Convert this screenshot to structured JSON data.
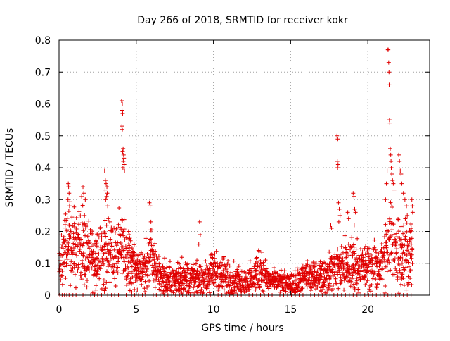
{
  "chart_data": {
    "type": "scatter",
    "title": "Day 266 of 2018, SRMTID for receiver kokr",
    "xlabel": "GPS time / hours",
    "ylabel": "SRMTID / TECUs",
    "xlim": [
      0,
      24
    ],
    "ylim": [
      0,
      0.8
    ],
    "x_ticks": [
      0,
      5,
      10,
      15,
      20
    ],
    "x_tick_labels": [
      "0",
      "5",
      "10",
      "15",
      "20"
    ],
    "y_ticks": [
      0,
      0.1,
      0.2,
      0.3,
      0.4,
      0.5,
      0.6,
      0.7,
      0.8
    ],
    "y_tick_labels": [
      "0",
      "0.1",
      "0.2",
      "0.3",
      "0.4",
      "0.5",
      "0.6",
      "0.7",
      "0.8"
    ],
    "grid": true,
    "marker": "+",
    "series_color": "#e00000",
    "grid_color": "#a0a0a0",
    "series": [
      {
        "name": "SRMTID",
        "envelope_hours": [
          0,
          0.4,
          0.7,
          1.0,
          1.5,
          2.0,
          2.5,
          3.0,
          3.3,
          3.6,
          4.0,
          4.3,
          4.6,
          5.0,
          5.5,
          6.0,
          6.5,
          7.0,
          7.5,
          8.0,
          8.5,
          9.0,
          9.5,
          10.0,
          10.5,
          11.0,
          11.5,
          12.0,
          12.5,
          13.0,
          13.5,
          14.0,
          14.5,
          15.0,
          15.5,
          16.0,
          16.5,
          17.0,
          17.5,
          18.0,
          18.5,
          19.0,
          19.5,
          20.0,
          20.5,
          21.0,
          21.5,
          22.0,
          22.5,
          22.9
        ],
        "envelope_median": [
          0.1,
          0.17,
          0.16,
          0.14,
          0.15,
          0.13,
          0.1,
          0.15,
          0.14,
          0.12,
          0.16,
          0.12,
          0.1,
          0.08,
          0.08,
          0.12,
          0.06,
          0.05,
          0.05,
          0.06,
          0.05,
          0.05,
          0.05,
          0.08,
          0.06,
          0.05,
          0.05,
          0.04,
          0.05,
          0.09,
          0.05,
          0.04,
          0.04,
          0.03,
          0.04,
          0.06,
          0.06,
          0.06,
          0.07,
          0.09,
          0.09,
          0.1,
          0.09,
          0.09,
          0.09,
          0.1,
          0.17,
          0.14,
          0.13,
          0.15
        ],
        "envelope_spread": [
          0.04,
          0.06,
          0.06,
          0.05,
          0.06,
          0.05,
          0.04,
          0.07,
          0.05,
          0.05,
          0.06,
          0.05,
          0.04,
          0.03,
          0.03,
          0.05,
          0.03,
          0.025,
          0.025,
          0.03,
          0.025,
          0.025,
          0.025,
          0.03,
          0.03,
          0.025,
          0.025,
          0.02,
          0.025,
          0.04,
          0.02,
          0.015,
          0.015,
          0.015,
          0.02,
          0.025,
          0.025,
          0.025,
          0.03,
          0.04,
          0.04,
          0.04,
          0.035,
          0.035,
          0.035,
          0.04,
          0.08,
          0.06,
          0.05,
          0.05
        ],
        "peak_points": [
          [
            0.6,
            0.35
          ],
          [
            0.62,
            0.34
          ],
          [
            0.65,
            0.32
          ],
          [
            0.58,
            0.3
          ],
          [
            0.68,
            0.28
          ],
          [
            1.55,
            0.34
          ],
          [
            1.6,
            0.32
          ],
          [
            1.7,
            0.3
          ],
          [
            1.65,
            0.25
          ],
          [
            1.5,
            0.22
          ],
          [
            2.95,
            0.39
          ],
          [
            3.0,
            0.36
          ],
          [
            3.05,
            0.35
          ],
          [
            3.1,
            0.34
          ],
          [
            2.98,
            0.33
          ],
          [
            3.12,
            0.32
          ],
          [
            3.08,
            0.31
          ],
          [
            3.02,
            0.3
          ],
          [
            3.15,
            0.28
          ],
          [
            3.2,
            0.24
          ],
          [
            4.05,
            0.61
          ],
          [
            4.1,
            0.6
          ],
          [
            4.08,
            0.58
          ],
          [
            4.12,
            0.57
          ],
          [
            4.07,
            0.53
          ],
          [
            4.1,
            0.52
          ],
          [
            4.15,
            0.46
          ],
          [
            4.12,
            0.45
          ],
          [
            4.18,
            0.44
          ],
          [
            4.2,
            0.43
          ],
          [
            4.16,
            0.42
          ],
          [
            4.22,
            0.41
          ],
          [
            4.14,
            0.4
          ],
          [
            4.24,
            0.39
          ],
          [
            4.5,
            0.2
          ],
          [
            4.55,
            0.19
          ],
          [
            5.85,
            0.29
          ],
          [
            5.9,
            0.28
          ],
          [
            5.95,
            0.23
          ],
          [
            9.1,
            0.23
          ],
          [
            9.15,
            0.19
          ],
          [
            9.05,
            0.16
          ],
          [
            17.6,
            0.22
          ],
          [
            17.65,
            0.21
          ],
          [
            18.0,
            0.5
          ],
          [
            18.05,
            0.49
          ],
          [
            18.02,
            0.42
          ],
          [
            18.07,
            0.41
          ],
          [
            18.04,
            0.4
          ],
          [
            18.1,
            0.29
          ],
          [
            18.15,
            0.27
          ],
          [
            18.2,
            0.25
          ],
          [
            18.12,
            0.23
          ],
          [
            18.7,
            0.26
          ],
          [
            18.75,
            0.24
          ],
          [
            19.05,
            0.32
          ],
          [
            19.1,
            0.31
          ],
          [
            19.15,
            0.27
          ],
          [
            19.2,
            0.26
          ],
          [
            19.12,
            0.22
          ],
          [
            21.3,
            0.77
          ],
          [
            21.32,
            0.77
          ],
          [
            21.35,
            0.73
          ],
          [
            21.37,
            0.7
          ],
          [
            21.38,
            0.66
          ],
          [
            21.4,
            0.55
          ],
          [
            21.42,
            0.54
          ],
          [
            21.45,
            0.46
          ],
          [
            21.48,
            0.44
          ],
          [
            21.5,
            0.42
          ],
          [
            21.52,
            0.4
          ],
          [
            21.55,
            0.38
          ],
          [
            21.6,
            0.36
          ],
          [
            21.65,
            0.35
          ],
          [
            21.7,
            0.33
          ],
          [
            21.25,
            0.39
          ],
          [
            21.2,
            0.35
          ],
          [
            21.15,
            0.3
          ],
          [
            22.0,
            0.44
          ],
          [
            22.05,
            0.42
          ],
          [
            22.1,
            0.39
          ],
          [
            22.15,
            0.38
          ],
          [
            22.2,
            0.35
          ],
          [
            22.3,
            0.32
          ],
          [
            22.4,
            0.3
          ],
          [
            22.5,
            0.28
          ],
          [
            22.55,
            0.25
          ],
          [
            22.85,
            0.3
          ],
          [
            22.88,
            0.28
          ],
          [
            22.9,
            0.26
          ],
          [
            22.8,
            0.22
          ],
          [
            22.75,
            0.2
          ]
        ],
        "zero_points_hours": [
          0.05,
          0.2,
          0.35,
          0.5,
          0.65,
          0.9,
          1.1,
          1.3,
          1.55,
          1.75,
          2.05,
          2.3,
          2.5,
          2.75,
          3.15,
          3.4,
          3.6,
          3.85,
          4.35,
          4.7,
          4.9,
          5.15,
          5.4,
          5.6,
          6.1,
          6.3,
          6.55,
          6.8,
          7.05,
          7.3,
          7.55,
          7.8,
          8.0,
          8.25,
          8.5,
          8.75,
          9.0,
          9.3,
          9.55,
          9.8,
          10.05,
          10.3,
          10.55,
          10.8,
          11.05,
          11.3,
          11.55,
          11.8,
          12.05,
          12.3,
          12.55,
          12.8,
          13.05,
          13.3,
          13.55,
          13.8,
          14.05,
          14.3,
          14.55,
          14.8,
          15.05,
          15.3,
          15.55,
          15.8,
          16.05,
          16.3,
          16.55,
          16.8,
          17.05,
          17.3,
          17.55,
          17.8,
          18.05,
          18.3,
          18.55,
          18.8,
          19.05,
          19.3,
          19.55,
          19.8,
          20.05,
          20.3,
          20.55,
          20.8,
          21.05,
          21.3,
          21.55,
          21.8,
          22.05,
          22.3,
          22.55,
          22.8
        ]
      }
    ]
  }
}
